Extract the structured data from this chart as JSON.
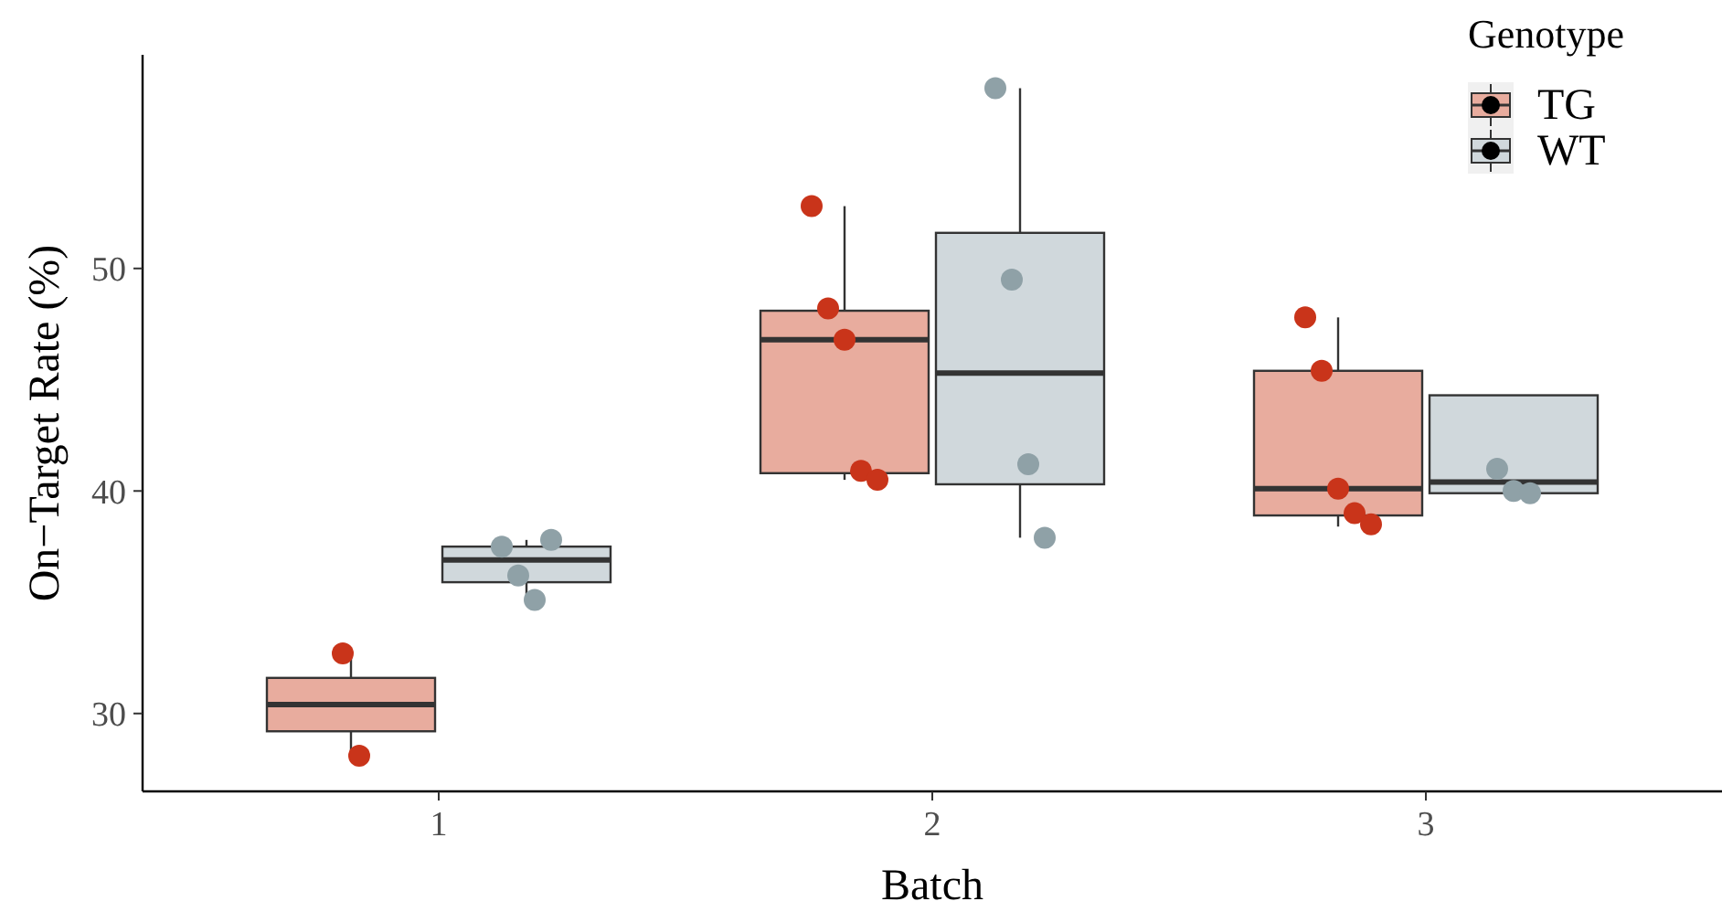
{
  "chart_data": {
    "type": "box",
    "xlabel": "Batch",
    "ylabel": "On−Target Rate (%)",
    "legend_title": "Genotype",
    "legend": "top right",
    "grid": false,
    "categories": [
      "1",
      "2",
      "3"
    ],
    "ylim": [
      26.5,
      59.6
    ],
    "yticks": [
      30,
      40,
      50
    ],
    "series": [
      {
        "name": "TG",
        "color": "#e8ac9e",
        "boxes": [
          {
            "low": 28.1,
            "q1": 29.2,
            "median": 30.4,
            "q3": 31.6,
            "high": 32.7
          },
          {
            "low": 40.5,
            "q1": 40.8,
            "median": 46.8,
            "q3": 48.1,
            "high": 52.8
          },
          {
            "low": 38.4,
            "q1": 38.9,
            "median": 40.1,
            "q3": 45.4,
            "high": 47.8
          }
        ]
      },
      {
        "name": "WT",
        "color": "#d0d8dc",
        "boxes": [
          {
            "low": 35.1,
            "q1": 35.9,
            "median": 36.9,
            "q3": 37.5,
            "high": 37.8
          },
          {
            "low": 37.9,
            "q1": 40.3,
            "median": 45.3,
            "q3": 51.6,
            "high": 58.1
          },
          {
            "low": 39.9,
            "q1": 39.9,
            "median": 40.4,
            "q3": 44.3,
            "high": 44.3
          }
        ]
      },
      {
        "type": "scatter",
        "color": "#c9341a",
        "x": [
          "1",
          "1",
          "2",
          "2",
          "2",
          "2",
          "2",
          "3",
          "3",
          "3",
          "3",
          "3"
        ],
        "values": [
          32.7,
          28.1,
          52.8,
          48.2,
          46.8,
          40.9,
          40.5,
          47.8,
          45.4,
          40.1,
          39.0,
          38.5
        ]
      },
      {
        "type": "scatter",
        "color": "#8fa1a7",
        "x": [
          "1",
          "1",
          "1",
          "1",
          "2",
          "2",
          "2",
          "2",
          "3",
          "3",
          "3"
        ],
        "values": [
          37.5,
          36.2,
          35.1,
          37.8,
          58.1,
          49.5,
          41.2,
          37.9,
          41.0,
          40.0,
          39.9
        ]
      }
    ]
  }
}
